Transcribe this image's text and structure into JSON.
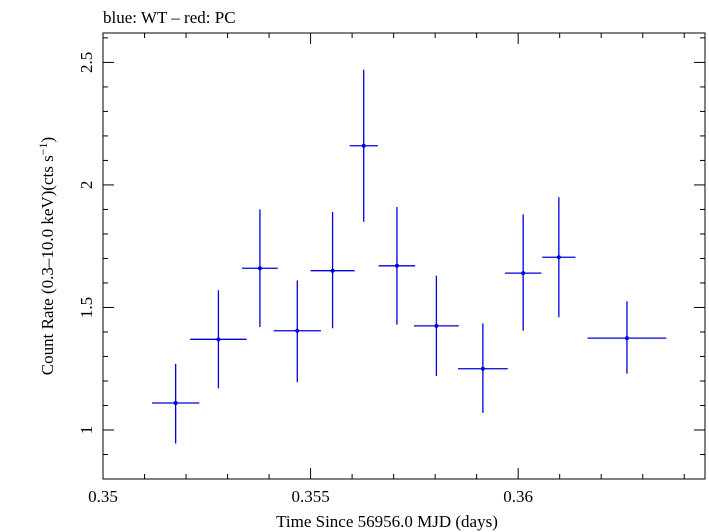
{
  "chart_data": {
    "type": "scatter",
    "title": "blue: WT – red: PC",
    "xlabel": "Time Since 56956.0 MJD (days)",
    "ylabel": "Count Rate (0.3–10.0 keV)(cts s",
    "ylabel_sup": "−1",
    "ylabel_close": ")",
    "xlim": [
      0.35,
      0.3645
    ],
    "ylim": [
      0.8,
      2.62
    ],
    "x_ticks": [
      {
        "value": 0.35,
        "label": "0.35"
      },
      {
        "value": 0.355,
        "label": "0.355"
      },
      {
        "value": 0.36,
        "label": "0.36"
      }
    ],
    "y_ticks": [
      {
        "value": 1.0,
        "label": "1"
      },
      {
        "value": 1.5,
        "label": "1.5"
      },
      {
        "value": 2.0,
        "label": "2"
      },
      {
        "value": 2.5,
        "label": "2.5"
      }
    ],
    "x_minor_step": 0.001,
    "y_minor_step": 0.1,
    "series": [
      {
        "color": "#0000dd",
        "points": [
          {
            "x": 0.35175,
            "xerr": 0.00057,
            "y": 1.11,
            "yerr_lo": 0.165,
            "yerr_hi": 0.16
          },
          {
            "x": 0.35278,
            "xerr": 0.00068,
            "y": 1.37,
            "yerr_lo": 0.2,
            "yerr_hi": 0.2
          },
          {
            "x": 0.35378,
            "xerr": 0.00043,
            "y": 1.66,
            "yerr_lo": 0.24,
            "yerr_hi": 0.24
          },
          {
            "x": 0.35468,
            "xerr": 0.00057,
            "y": 1.405,
            "yerr_lo": 0.21,
            "yerr_hi": 0.205
          },
          {
            "x": 0.35553,
            "xerr": 0.00053,
            "y": 1.65,
            "yerr_lo": 0.235,
            "yerr_hi": 0.24
          },
          {
            "x": 0.35628,
            "xerr": 0.00034,
            "y": 2.16,
            "yerr_lo": 0.31,
            "yerr_hi": 0.31
          },
          {
            "x": 0.35708,
            "xerr": 0.00044,
            "y": 1.67,
            "yerr_lo": 0.24,
            "yerr_hi": 0.24
          },
          {
            "x": 0.35803,
            "xerr": 0.00054,
            "y": 1.425,
            "yerr_lo": 0.205,
            "yerr_hi": 0.205
          },
          {
            "x": 0.35915,
            "xerr": 0.0006,
            "y": 1.25,
            "yerr_lo": 0.18,
            "yerr_hi": 0.185
          },
          {
            "x": 0.36012,
            "xerr": 0.00044,
            "y": 1.64,
            "yerr_lo": 0.235,
            "yerr_hi": 0.24
          },
          {
            "x": 0.36098,
            "xerr": 0.0004,
            "y": 1.705,
            "yerr_lo": 0.245,
            "yerr_hi": 0.245
          },
          {
            "x": 0.36262,
            "xerr": 0.00095,
            "y": 1.375,
            "yerr_lo": 0.145,
            "yerr_hi": 0.15
          }
        ]
      }
    ]
  }
}
